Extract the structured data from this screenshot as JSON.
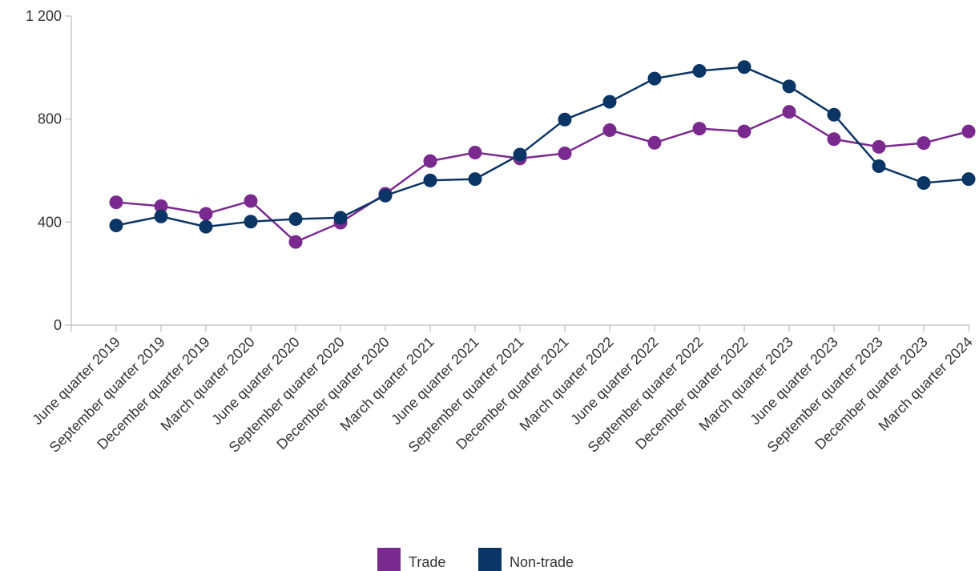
{
  "chart_data": {
    "type": "line",
    "title": "",
    "xlabel": "",
    "ylabel": "",
    "ylim": [
      0,
      1200
    ],
    "y_ticks": [
      0,
      400,
      800,
      1200
    ],
    "y_tick_labels": [
      "0",
      "400",
      "800",
      "1 200"
    ],
    "grid": false,
    "legend_position": "bottom-center",
    "categories": [
      "June quarter 2019",
      "September quarter 2019",
      "December quarter 2019",
      "March quarter 2020",
      "June quarter 2020",
      "September quarter 2020",
      "December quarter 2020",
      "March quarter 2021",
      "June quarter 2021",
      "September quarter 2021",
      "December quarter 2021",
      "March quarter 2022",
      "June quarter 2022",
      "September quarter 2022",
      "December quarter 2022",
      "March quarter 2023",
      "June quarter 2023",
      "September quarter 2023",
      "December quarter 2023",
      "March quarter 2024"
    ],
    "series": [
      {
        "name": "Trade",
        "color": "#7a2a8e",
        "values": [
          477,
          462,
          432,
          482,
          323,
          398,
          510,
          637,
          670,
          647,
          667,
          757,
          708,
          763,
          752,
          828,
          722,
          692,
          707,
          752
        ]
      },
      {
        "name": "Non-trade",
        "color": "#0b3565",
        "values": [
          387,
          422,
          382,
          402,
          412,
          417,
          503,
          562,
          567,
          662,
          798,
          867,
          957,
          987,
          1002,
          927,
          817,
          617,
          552,
          567
        ]
      }
    ]
  }
}
